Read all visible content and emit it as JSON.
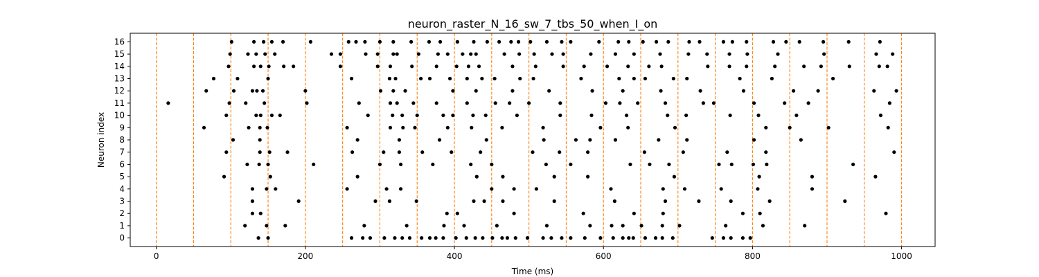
{
  "chart_data": {
    "type": "scatter",
    "title": "neuron_raster_N_16_sw_7_tbs_50_when_I_on",
    "xlabel": "Time (ms)",
    "ylabel": "Neuron index",
    "xlim": [
      -35,
      1045
    ],
    "ylim": [
      -0.7,
      16.7
    ],
    "x_ticks": [
      0,
      200,
      400,
      600,
      800,
      1000
    ],
    "x_tick_labels": [
      "0",
      "200",
      "400",
      "600",
      "800",
      "1000"
    ],
    "y_ticks": [
      0,
      1,
      2,
      3,
      4,
      5,
      6,
      7,
      8,
      9,
      10,
      11,
      12,
      13,
      14,
      15,
      16
    ],
    "y_tick_labels": [
      "0",
      "1",
      "2",
      "3",
      "4",
      "5",
      "6",
      "7",
      "8",
      "9",
      "10",
      "11",
      "12",
      "13",
      "14",
      "15",
      "16"
    ],
    "grid": false,
    "vlines": {
      "x": [
        0,
        50,
        100,
        150,
        200,
        250,
        300,
        350,
        400,
        450,
        500,
        550,
        600,
        650,
        700,
        750,
        800,
        850,
        900,
        950,
        1000
      ],
      "color": "#ff7f0e",
      "style": "dashed"
    },
    "marker_color": "#000000",
    "spikes": [
      {
        "neuron": 0,
        "times": [
          137,
          150,
          262,
          277,
          287,
          306,
          320,
          330,
          340,
          356,
          367,
          375,
          385,
          402,
          416,
          428,
          438,
          451,
          464,
          471,
          482,
          498,
          519,
          530,
          544,
          556,
          575,
          596,
          613,
          626,
          634,
          640,
          656,
          670,
          679,
          693,
          746,
          761,
          771,
          787,
          797
        ]
      },
      {
        "neuron": 1,
        "times": [
          119,
          148,
          173,
          279,
          336,
          386,
          413,
          457,
          524,
          582,
          611,
          626,
          651,
          679,
          702,
          764,
          814,
          870
        ]
      },
      {
        "neuron": 2,
        "times": [
          129,
          140,
          390,
          404,
          480,
          573,
          641,
          680,
          787,
          810,
          979
        ]
      },
      {
        "neuron": 3,
        "times": [
          129,
          191,
          294,
          313,
          349,
          426,
          440,
          465,
          534,
          615,
          683,
          728,
          771,
          823,
          924
        ]
      },
      {
        "neuron": 4,
        "times": [
          129,
          148,
          160,
          256,
          309,
          328,
          450,
          480,
          510,
          610,
          680,
          709,
          758,
          807,
          880
        ]
      },
      {
        "neuron": 5,
        "times": [
          91,
          153,
          270,
          430,
          465,
          534,
          579,
          695,
          809,
          880,
          965
        ]
      },
      {
        "neuron": 6,
        "times": [
          122,
          138,
          150,
          211,
          300,
          328,
          371,
          422,
          450,
          523,
          556,
          636,
          662,
          688,
          755,
          772,
          801,
          819,
          935
        ]
      },
      {
        "neuron": 7,
        "times": [
          94,
          139,
          152,
          176,
          263,
          305,
          326,
          357,
          396,
          435,
          505,
          541,
          579,
          655,
          707,
          766,
          818,
          990
        ]
      },
      {
        "neuron": 8,
        "times": [
          103,
          139,
          270,
          326,
          380,
          443,
          520,
          563,
          582,
          616,
          674,
          712,
          802,
          865
        ]
      },
      {
        "neuron": 9,
        "times": [
          64,
          124,
          139,
          149,
          256,
          314,
          331,
          347,
          391,
          423,
          464,
          519,
          596,
          633,
          696,
          818,
          850,
          902,
          982
        ]
      },
      {
        "neuron": 10,
        "times": [
          94,
          134,
          140,
          155,
          166,
          284,
          317,
          330,
          350,
          385,
          398,
          425,
          442,
          484,
          542,
          584,
          631,
          686,
          711,
          770,
          808,
          859,
          972
        ]
      },
      {
        "neuron": 11,
        "times": [
          16,
          98,
          120,
          145,
          202,
          272,
          314,
          323,
          345,
          376,
          417,
          455,
          474,
          500,
          542,
          603,
          622,
          646,
          683,
          734,
          748,
          802,
          843,
          875,
          984
        ]
      },
      {
        "neuron": 12,
        "times": [
          67,
          104,
          129,
          135,
          143,
          200,
          301,
          318,
          334,
          398,
          429,
          478,
          527,
          585,
          626,
          677,
          730,
          788,
          855,
          888,
          963,
          993
        ]
      },
      {
        "neuron": 13,
        "times": [
          77,
          109,
          150,
          262,
          313,
          321,
          355,
          367,
          394,
          417,
          437,
          454,
          488,
          506,
          570,
          621,
          641,
          656,
          694,
          712,
          783,
          826,
          908
        ]
      },
      {
        "neuron": 14,
        "times": [
          97,
          131,
          140,
          151,
          171,
          184,
          247,
          297,
          314,
          343,
          376,
          403,
          419,
          433,
          478,
          509,
          546,
          574,
          605,
          633,
          661,
          678,
          740,
          769,
          792,
          830,
          869,
          892,
          930,
          970,
          981
        ]
      },
      {
        "neuron": 15,
        "times": [
          99,
          123,
          134,
          146,
          159,
          235,
          247,
          281,
          297,
          318,
          323,
          352,
          378,
          391,
          411,
          422,
          429,
          467,
          487,
          507,
          531,
          546,
          583,
          616,
          641,
          676,
          714,
          739,
          769,
          793,
          834,
          896,
          966,
          988
        ]
      },
      {
        "neuron": 16,
        "times": [
          101,
          131,
          144,
          155,
          170,
          207,
          258,
          268,
          280,
          300,
          318,
          342,
          366,
          381,
          404,
          426,
          444,
          460,
          476,
          486,
          502,
          524,
          544,
          556,
          594,
          620,
          634,
          653,
          671,
          687,
          715,
          729,
          761,
          773,
          792,
          828,
          845,
          863,
          895,
          929,
          971
        ]
      }
    ]
  }
}
